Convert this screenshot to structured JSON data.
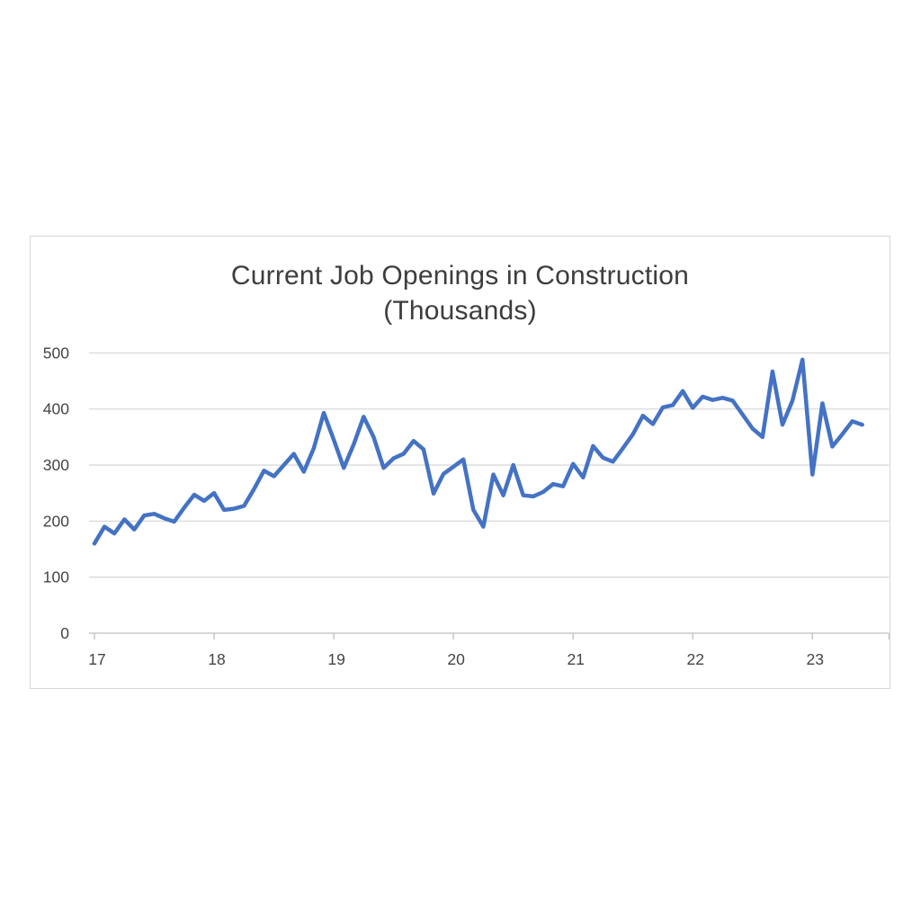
{
  "chart_data": {
    "type": "line",
    "title": "Current Job Openings in Construction (Thousands)",
    "title_lines": [
      "Current Job Openings in Construction",
      "(Thousands)"
    ],
    "xlabel": "",
    "ylabel": "",
    "x_frequency": "monthly",
    "x_start": "2017-01",
    "x_end": "2023-06",
    "x_tick_labels": [
      "17",
      "18",
      "19",
      "20",
      "21",
      "22",
      "23"
    ],
    "y_ticks": [
      0,
      100,
      200,
      300,
      400,
      500
    ],
    "ylim": [
      0,
      500
    ],
    "grid": "horizontal",
    "legend": "none",
    "series": [
      {
        "name": "Current Job Openings in Construction (Thousands)",
        "values": [
          160,
          190,
          178,
          203,
          185,
          210,
          213,
          205,
          199,
          224,
          247,
          236,
          250,
          220,
          222,
          227,
          257,
          290,
          280,
          300,
          320,
          288,
          330,
          393,
          345,
          295,
          337,
          386,
          350,
          295,
          312,
          320,
          343,
          328,
          249,
          284,
          297,
          310,
          220,
          190,
          283,
          246,
          300,
          246,
          244,
          252,
          266,
          262,
          302,
          278,
          334,
          313,
          306,
          330,
          355,
          388,
          373,
          403,
          407,
          432,
          402,
          422,
          416,
          420,
          415,
          390,
          365,
          350,
          467,
          372,
          415,
          488,
          283,
          410,
          333,
          355,
          378,
          372
        ]
      }
    ]
  },
  "style": {
    "line_color": "#4472C4",
    "gridline_color": "#D9D9D9",
    "axis_line_color": "#BFBFBF",
    "tick_label_color": "#444444",
    "title_color": "#3D3D3D",
    "chart_border_color": "#D6D6D6",
    "background_color": "#FFFFFF"
  }
}
